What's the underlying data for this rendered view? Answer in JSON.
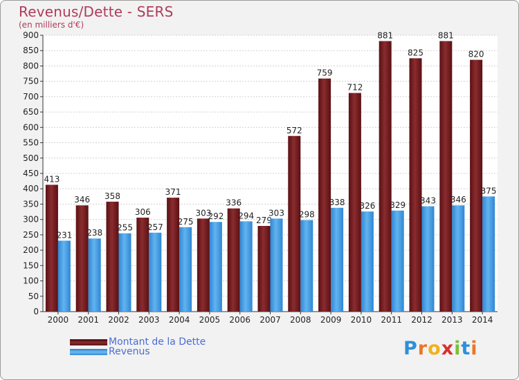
{
  "title": "Revenus/Dette - SERS",
  "subtitle": "(en milliers d'€)",
  "colors": {
    "debt": "#7a1f22",
    "revenue": "#3a9ae0",
    "title": "#b03a5b"
  },
  "legend": {
    "debt_label": "Montant de la Dette",
    "revenue_label": "Revenus"
  },
  "logo": {
    "text": "Proxiti"
  },
  "chart_data": {
    "type": "bar",
    "title": "Revenus/Dette - SERS",
    "subtitle": "(en milliers d'€)",
    "categories": [
      "2000",
      "2001",
      "2002",
      "2003",
      "2004",
      "2005",
      "2006",
      "2007",
      "2008",
      "2009",
      "2010",
      "2011",
      "2012",
      "2013",
      "2014"
    ],
    "series": [
      {
        "name": "Montant de la Dette",
        "values": [
          413,
          346,
          358,
          306,
          371,
          303,
          336,
          279,
          572,
          759,
          712,
          881,
          825,
          881,
          820
        ]
      },
      {
        "name": "Revenus",
        "values": [
          231,
          238,
          255,
          257,
          275,
          292,
          294,
          303,
          298,
          338,
          326,
          329,
          343,
          346,
          375
        ]
      }
    ],
    "ylim": [
      0,
      900
    ],
    "ytick_step": 50,
    "grid": true,
    "legend_position": "bottom-left"
  }
}
